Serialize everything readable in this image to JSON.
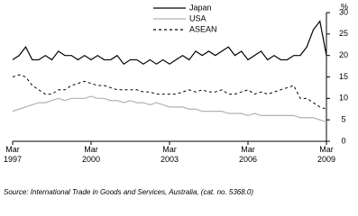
{
  "chart_data": {
    "type": "line",
    "unit_label": "%",
    "source": "Source: International Trade in Goods and Services, Australia, (cat. no. 5368.0)",
    "x": [
      "1997-03",
      "1997-06",
      "1997-09",
      "1997-12",
      "1998-03",
      "1998-06",
      "1998-09",
      "1998-12",
      "1999-03",
      "1999-06",
      "1999-09",
      "1999-12",
      "2000-03",
      "2000-06",
      "2000-09",
      "2000-12",
      "2001-03",
      "2001-06",
      "2001-09",
      "2001-12",
      "2002-03",
      "2002-06",
      "2002-09",
      "2002-12",
      "2003-03",
      "2003-06",
      "2003-09",
      "2003-12",
      "2004-03",
      "2004-06",
      "2004-09",
      "2004-12",
      "2005-03",
      "2005-06",
      "2005-09",
      "2005-12",
      "2006-03",
      "2006-06",
      "2006-09",
      "2006-12",
      "2007-03",
      "2007-06",
      "2007-09",
      "2007-12",
      "2008-03",
      "2008-06",
      "2008-09",
      "2008-12",
      "2009-03"
    ],
    "series": [
      {
        "name": "Japan",
        "color": "#000000",
        "style": "solid",
        "values": [
          19,
          20,
          22,
          19,
          19,
          20,
          19,
          21,
          20,
          20,
          19,
          20,
          19,
          20,
          19,
          19,
          20,
          18,
          19,
          19,
          18,
          19,
          18,
          19,
          18,
          19,
          20,
          19,
          21,
          20,
          21,
          20,
          21,
          22,
          20,
          21,
          19,
          20,
          21,
          19,
          20,
          19,
          19,
          20,
          20,
          22,
          26,
          28,
          20
        ]
      },
      {
        "name": "USA",
        "color": "#b3b3b3",
        "style": "solid",
        "values": [
          7,
          7.5,
          8,
          8.5,
          9,
          9,
          9.5,
          10,
          9.5,
          10,
          10,
          10,
          10.5,
          10,
          10,
          9.5,
          9.5,
          9,
          9.5,
          9,
          9,
          8.5,
          9,
          8.5,
          8,
          8,
          8,
          7.5,
          7.5,
          7,
          7,
          7,
          7,
          6.5,
          6.5,
          6.5,
          6,
          6.5,
          6,
          6,
          6,
          6,
          6,
          6,
          5.5,
          5.5,
          5.5,
          5,
          4.5
        ]
      },
      {
        "name": "ASEAN",
        "color": "#000000",
        "style": "dashed",
        "values": [
          15,
          15.5,
          15,
          13,
          12,
          11,
          11,
          12,
          12,
          13,
          13.5,
          14,
          13.5,
          13,
          13,
          12.5,
          12,
          12,
          12,
          12,
          11.5,
          11.5,
          11,
          11,
          11,
          11,
          11.5,
          12,
          11.5,
          12,
          11.5,
          11.5,
          12,
          11,
          11,
          11.5,
          12,
          11,
          11.5,
          11,
          11.5,
          12,
          12.5,
          13,
          10,
          10,
          9,
          8,
          7.5
        ]
      }
    ],
    "xlim": [
      "1997-03",
      "2009-03"
    ],
    "xticks": [
      {
        "value": "1997-03",
        "label": "Mar 1997"
      },
      {
        "value": "2000-03",
        "label": "Mar 2000"
      },
      {
        "value": "2003-03",
        "label": "Mar 2003"
      },
      {
        "value": "2006-03",
        "label": "Mar 2006"
      },
      {
        "value": "2009-03",
        "label": "Mar 2009"
      }
    ],
    "ylim": [
      0,
      30
    ],
    "yticks": [
      0,
      5,
      10,
      15,
      20,
      25,
      30
    ],
    "grid": false
  }
}
